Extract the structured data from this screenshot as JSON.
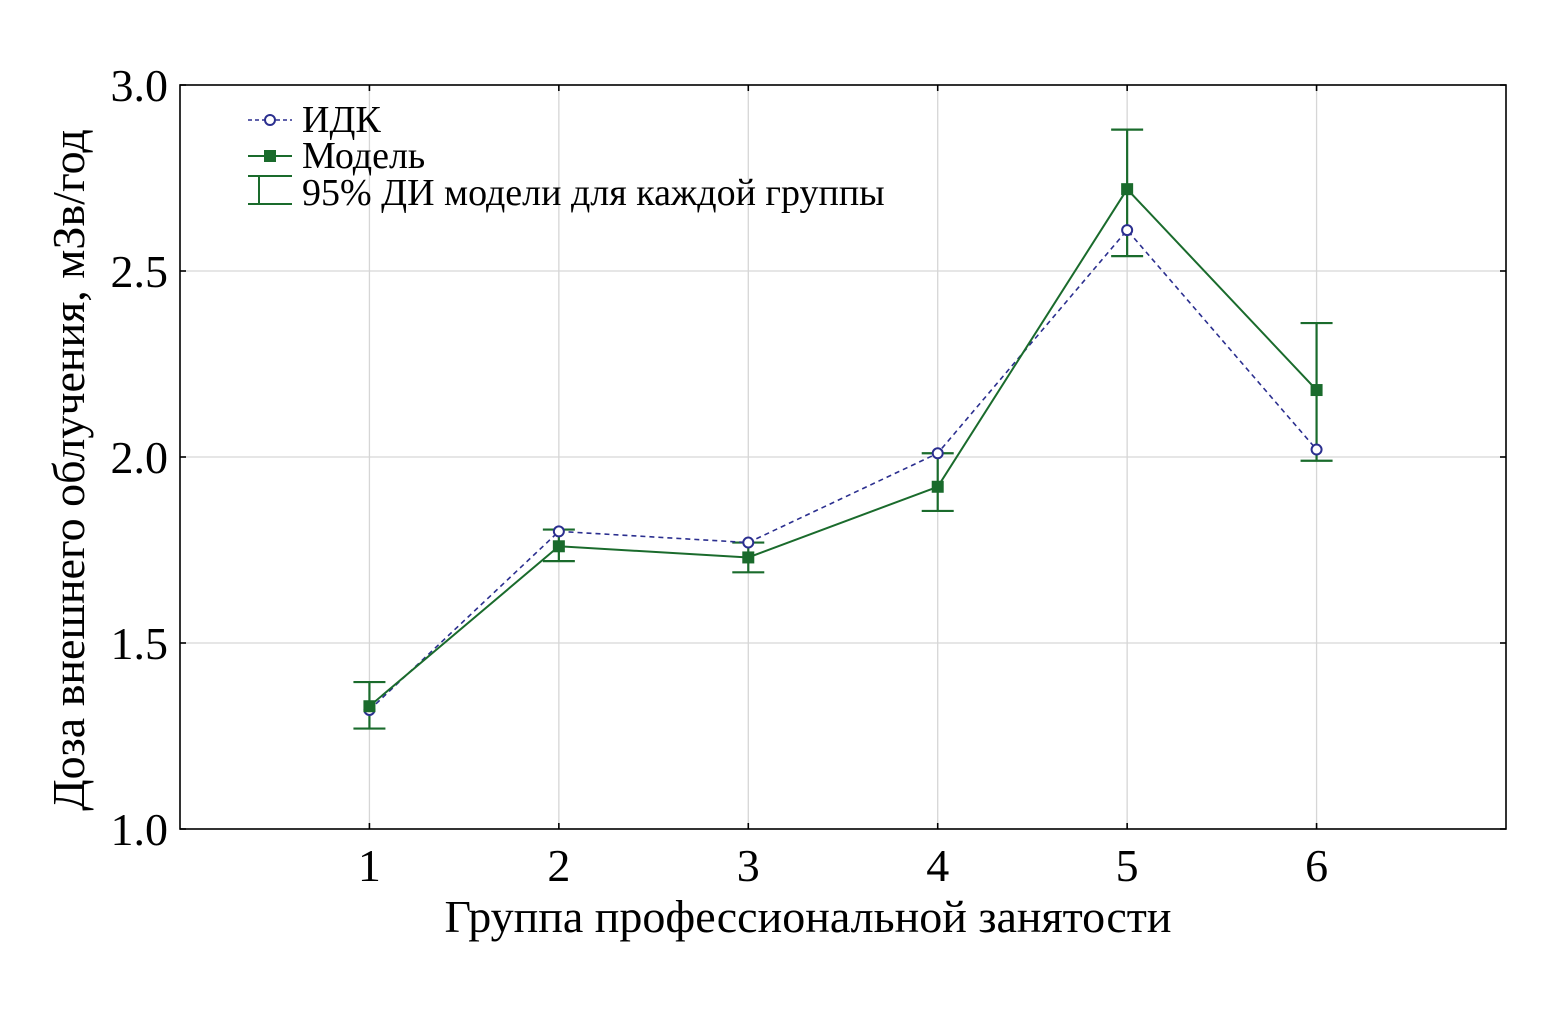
{
  "chart_data": {
    "type": "line",
    "categories": [
      "1",
      "2",
      "3",
      "4",
      "5",
      "6"
    ],
    "x": [
      1,
      2,
      3,
      4,
      5,
      6
    ],
    "xlim": [
      0,
      7
    ],
    "ylim": [
      1.0,
      3.0
    ],
    "yticks": [
      "1.0",
      "1.5",
      "2.0",
      "2.5",
      "3.0"
    ],
    "ytick_values": [
      1.0,
      1.5,
      2.0,
      2.5,
      3.0
    ],
    "xlabel": "Группа профессиональной занятости",
    "ylabel": "Доза внешнего облучения, мЗв/год",
    "grid": true,
    "legend_position": "top-left",
    "series": [
      {
        "name": "ИДК",
        "values": [
          1.32,
          1.8,
          1.77,
          2.01,
          2.61,
          2.02
        ],
        "color": "#2b2f8f",
        "marker": "open-circle",
        "line": "dashed"
      },
      {
        "name": "Модель",
        "values": [
          1.33,
          1.76,
          1.73,
          1.92,
          2.72,
          2.18
        ],
        "color": "#1a6b2c",
        "marker": "filled-square",
        "line": "solid",
        "ci_lower": [
          1.27,
          1.72,
          1.69,
          1.855,
          2.54,
          1.99
        ],
        "ci_upper": [
          1.395,
          1.805,
          1.77,
          2.01,
          2.88,
          2.36
        ]
      }
    ],
    "ci_legend_label": "95% ДИ модели для каждой группы"
  }
}
